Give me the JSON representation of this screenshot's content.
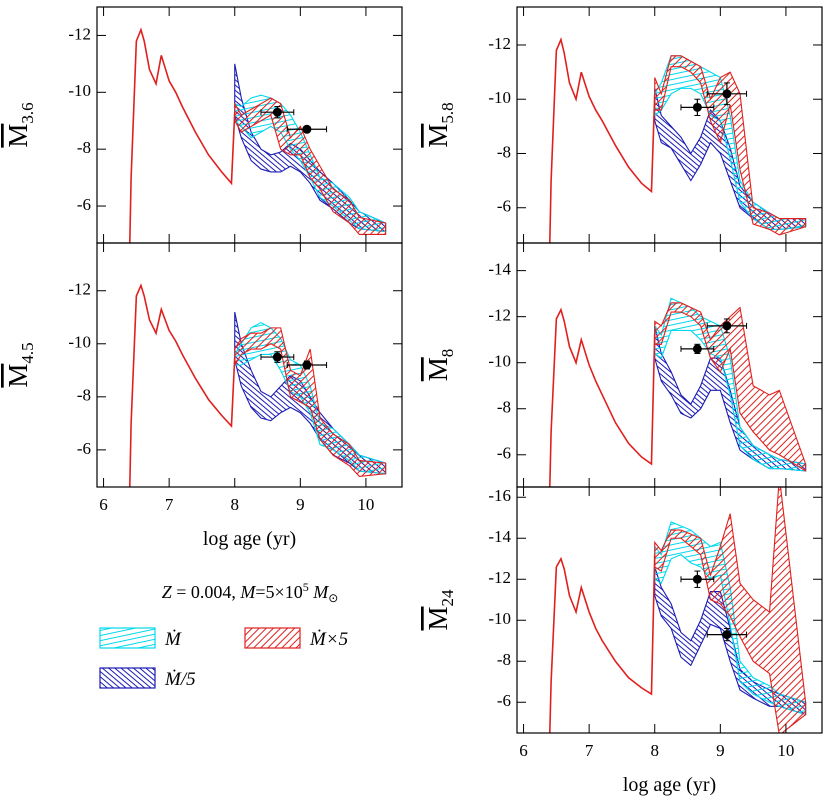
{
  "series": [
    {
      "name": "Ṁ",
      "color": "#00d8ee"
    },
    {
      "name": "Ṁ/5",
      "color": "#1c1cb4"
    },
    {
      "name": "Ṁ×5",
      "color": "#e0201e"
    }
  ],
  "annotation": [
    "Z",
    " = 0.004, ",
    "M",
    "=5×10",
    "5",
    " M",
    "⊙"
  ],
  "x_track": [
    6.4,
    6.42,
    6.5,
    6.57,
    6.62,
    6.7,
    6.8,
    6.88,
    7.0,
    7.1,
    7.2,
    7.4,
    7.6,
    7.8,
    7.95,
    8.0
  ],
  "x_bands": [
    8.0,
    8.1,
    8.25,
    8.4,
    8.55,
    8.7,
    8.85,
    9.0,
    9.15,
    9.3,
    9.5,
    9.75,
    9.9,
    10.3
  ],
  "chart_data": [
    {
      "type": "band",
      "ylabel": "M",
      "ylabel_sub": "3.6",
      "xlim": [
        5.9,
        10.55
      ],
      "xticks": [
        6,
        7,
        8,
        9,
        10
      ],
      "ylim": [
        -4.7,
        -13.0
      ],
      "yticks": [
        -12,
        -10,
        -8,
        -6
      ],
      "track": [
        -4.7,
        -7.0,
        -11.8,
        -12.2,
        -11.8,
        -10.8,
        -10.3,
        -11.3,
        -10.4,
        -10.0,
        -9.5,
        -8.6,
        -7.8,
        -7.2,
        -6.8,
        -9.3
      ],
      "bands": [
        {
          "lower": [
            -9.6,
            -9.5,
            -9.8,
            -9.9,
            -9.8,
            -9.6,
            -9.2,
            -8.6,
            -7.8,
            -7.0,
            -6.8,
            -6.3,
            -5.8,
            -5.4
          ],
          "upper": [
            -9.0,
            -8.8,
            -8.4,
            -8.6,
            -8.8,
            -8.6,
            -8.0,
            -7.6,
            -7.0,
            -6.3,
            -6.0,
            -5.5,
            -5.2,
            -5.1
          ]
        },
        {
          "lower": [
            -11.0,
            -9.8,
            -8.6,
            -8.0,
            -7.8,
            -7.9,
            -8.2,
            -8.0,
            -7.6,
            -7.2,
            -6.8,
            -6.2,
            -5.8,
            -5.4
          ],
          "upper": [
            -9.2,
            -8.4,
            -7.6,
            -7.3,
            -7.2,
            -7.2,
            -7.4,
            -7.2,
            -6.8,
            -6.2,
            -5.9,
            -5.4,
            -5.2,
            -5.1
          ]
        },
        {
          "lower": [
            -9.6,
            -9.2,
            -9.4,
            -9.6,
            -9.8,
            -9.6,
            -8.4,
            -8.8,
            -8.0,
            -7.4,
            -6.6,
            -6.2,
            -5.6,
            -5.4
          ],
          "upper": [
            -9.0,
            -8.6,
            -8.8,
            -9.0,
            -9.2,
            -8.0,
            -7.8,
            -7.8,
            -7.0,
            -6.6,
            -5.8,
            -5.4,
            -5.0,
            -5.0
          ]
        }
      ],
      "points": [
        {
          "x": 8.65,
          "y": -9.3,
          "xerr": 0.25,
          "yerr": 0.2
        },
        {
          "x": 9.1,
          "y": -8.7,
          "xerr": 0.3,
          "yerr": 0.1
        }
      ]
    },
    {
      "type": "band",
      "ylabel": "M",
      "ylabel_sub": "4.5",
      "xlabel": "log age (yr)",
      "xlim": [
        5.9,
        10.55
      ],
      "xticks": [
        6,
        7,
        8,
        9,
        10
      ],
      "ylim": [
        -4.6,
        -13.8
      ],
      "yticks": [
        -12,
        -10,
        -8,
        -6
      ],
      "track": [
        -4.6,
        -7.0,
        -11.8,
        -12.2,
        -11.8,
        -10.9,
        -10.4,
        -11.3,
        -10.5,
        -10.1,
        -9.6,
        -8.7,
        -7.9,
        -7.3,
        -6.9,
        -9.5
      ],
      "bands": [
        {
          "lower": [
            -9.6,
            -10.0,
            -10.6,
            -10.8,
            -10.6,
            -10.2,
            -9.4,
            -9.2,
            -8.4,
            -7.0,
            -6.8,
            -6.2,
            -5.8,
            -5.5
          ],
          "upper": [
            -9.2,
            -9.2,
            -9.4,
            -9.6,
            -9.6,
            -9.0,
            -8.2,
            -8.0,
            -7.4,
            -6.2,
            -6.0,
            -5.6,
            -5.2,
            -5.1
          ]
        },
        {
          "lower": [
            -11.2,
            -10.0,
            -9.0,
            -8.2,
            -8.0,
            -8.4,
            -8.8,
            -8.6,
            -8.0,
            -7.4,
            -6.8,
            -6.2,
            -5.8,
            -5.5
          ],
          "upper": [
            -9.4,
            -8.4,
            -7.6,
            -7.2,
            -7.1,
            -7.4,
            -7.6,
            -7.4,
            -7.0,
            -6.4,
            -5.8,
            -5.5,
            -5.2,
            -5.1
          ]
        },
        {
          "lower": [
            -9.8,
            -10.2,
            -10.4,
            -10.4,
            -10.6,
            -10.6,
            -9.0,
            -8.8,
            -9.8,
            -7.2,
            -6.6,
            -6.2,
            -5.6,
            -5.5
          ],
          "upper": [
            -9.2,
            -9.6,
            -9.8,
            -9.8,
            -10.0,
            -9.8,
            -8.0,
            -7.8,
            -7.6,
            -6.4,
            -5.8,
            -5.4,
            -5.0,
            -5.1
          ]
        }
      ],
      "points": [
        {
          "x": 8.65,
          "y": -9.5,
          "xerr": 0.25,
          "yerr": 0.2
        },
        {
          "x": 9.1,
          "y": -9.2,
          "xerr": 0.3,
          "yerr": 0.15
        }
      ]
    },
    {
      "type": "band",
      "ylabel": "M",
      "ylabel_sub": "5.8",
      "xlim": [
        5.9,
        10.55
      ],
      "xticks": [
        6,
        7,
        8,
        9,
        10
      ],
      "ylim": [
        -4.7,
        -13.4
      ],
      "yticks": [
        -12,
        -10,
        -8,
        -6
      ],
      "track": [
        -4.7,
        -7.0,
        -11.8,
        -12.2,
        -11.7,
        -10.6,
        -10.0,
        -11.0,
        -10.1,
        -9.6,
        -9.2,
        -8.3,
        -7.5,
        -6.9,
        -6.6,
        -10.2
      ],
      "bands": [
        {
          "lower": [
            -10.2,
            -10.6,
            -11.6,
            -11.6,
            -11.4,
            -11.2,
            -11.0,
            -10.8,
            -9.4,
            -7.0,
            -6.2,
            -5.8,
            -5.6,
            -5.6
          ],
          "upper": [
            -9.4,
            -9.6,
            -10.2,
            -10.4,
            -10.4,
            -10.2,
            -9.4,
            -9.2,
            -7.8,
            -6.2,
            -5.6,
            -5.2,
            -5.2,
            -5.3
          ]
        },
        {
          "lower": [
            -10.4,
            -9.4,
            -9.0,
            -8.6,
            -8.0,
            -8.6,
            -9.6,
            -9.2,
            -8.2,
            -6.8,
            -6.2,
            -5.8,
            -5.6,
            -5.6
          ],
          "upper": [
            -9.2,
            -8.4,
            -8.2,
            -7.6,
            -7.0,
            -7.6,
            -8.4,
            -8.0,
            -7.0,
            -6.0,
            -5.6,
            -5.2,
            -5.2,
            -5.3
          ]
        },
        {
          "lower": [
            -10.8,
            -10.2,
            -11.6,
            -11.6,
            -11.4,
            -11.2,
            -10.0,
            -10.8,
            -11.0,
            -10.2,
            -6.0,
            -5.8,
            -5.6,
            -5.6
          ],
          "upper": [
            -9.6,
            -9.6,
            -11.2,
            -11.2,
            -11.0,
            -10.6,
            -9.2,
            -8.4,
            -9.8,
            -7.4,
            -5.4,
            -5.2,
            -5.0,
            -5.3
          ]
        }
      ],
      "points": [
        {
          "x": 8.65,
          "y": -9.7,
          "xerr": 0.25,
          "yerr": 0.3
        },
        {
          "x": 9.1,
          "y": -10.2,
          "xerr": 0.3,
          "yerr": 0.4
        }
      ]
    },
    {
      "type": "band",
      "ylabel": "M",
      "ylabel_sub": "8",
      "xlim": [
        5.9,
        10.55
      ],
      "xticks": [
        6,
        7,
        8,
        9,
        10
      ],
      "ylim": [
        -4.6,
        -15.2
      ],
      "yticks": [
        -14,
        -12,
        -10,
        -8,
        -6
      ],
      "track": [
        -4.6,
        -7.0,
        -11.9,
        -12.3,
        -11.8,
        -10.7,
        -10.0,
        -11.0,
        -9.9,
        -9.2,
        -8.6,
        -7.4,
        -6.5,
        -5.9,
        -5.6,
        -11.3
      ],
      "bands": [
        {
          "lower": [
            -11.6,
            -11.2,
            -12.8,
            -12.6,
            -12.4,
            -12.0,
            -11.8,
            -11.6,
            -10.2,
            -7.2,
            -6.4,
            -6.0,
            -5.8,
            -5.6
          ],
          "upper": [
            -10.4,
            -10.2,
            -11.4,
            -11.4,
            -11.4,
            -11.0,
            -10.4,
            -10.2,
            -8.6,
            -6.4,
            -5.8,
            -5.4,
            -5.4,
            -5.3
          ]
        },
        {
          "lower": [
            -11.6,
            -10.4,
            -9.6,
            -8.6,
            -8.2,
            -9.0,
            -10.2,
            -10.2,
            -8.8,
            -7.2,
            -6.4,
            -6.0,
            -5.8,
            -5.6
          ],
          "upper": [
            -10.2,
            -9.2,
            -8.6,
            -7.8,
            -7.6,
            -8.0,
            -8.8,
            -8.8,
            -7.4,
            -6.2,
            -5.8,
            -5.4,
            -5.4,
            -5.3
          ]
        },
        {
          "lower": [
            -11.8,
            -11.6,
            -12.6,
            -12.6,
            -12.4,
            -12.2,
            -11.0,
            -11.6,
            -12.0,
            -12.4,
            -9.0,
            -8.6,
            -8.8,
            -5.6
          ],
          "upper": [
            -10.8,
            -10.8,
            -12.2,
            -12.2,
            -12.0,
            -11.6,
            -10.2,
            -9.6,
            -10.6,
            -7.8,
            -7.0,
            -6.2,
            -6.0,
            -5.3
          ]
        }
      ],
      "points": [
        {
          "x": 8.65,
          "y": -10.6,
          "xerr": 0.25,
          "yerr": 0.2
        },
        {
          "x": 9.1,
          "y": -11.6,
          "xerr": 0.3,
          "yerr": 0.3
        }
      ]
    },
    {
      "type": "band",
      "ylabel": "M",
      "ylabel_sub": "24",
      "xlabel": "log age (yr)",
      "xlim": [
        5.9,
        10.55
      ],
      "xticks": [
        6,
        7,
        8,
        9,
        10
      ],
      "ylim": [
        -4.5,
        -16.5
      ],
      "yticks": [
        -16,
        -14,
        -12,
        -10,
        -8,
        -6
      ],
      "track": [
        -4.5,
        -7.0,
        -12.6,
        -13.0,
        -12.5,
        -11.2,
        -10.4,
        -11.6,
        -10.4,
        -9.6,
        -9.0,
        -8.0,
        -7.2,
        -6.7,
        -6.4,
        -13.2
      ],
      "bands": [
        {
          "lower": [
            -13.6,
            -13.2,
            -14.8,
            -14.6,
            -14.4,
            -14.0,
            -13.6,
            -13.8,
            -11.6,
            -8.0,
            -7.2,
            -6.8,
            -6.4,
            -6.0
          ],
          "upper": [
            -12.0,
            -11.8,
            -13.0,
            -13.2,
            -12.8,
            -12.6,
            -12.0,
            -12.2,
            -9.8,
            -7.0,
            -6.4,
            -6.0,
            -5.8,
            -5.4
          ]
        },
        {
          "lower": [
            -12.6,
            -11.6,
            -10.8,
            -9.4,
            -9.0,
            -10.0,
            -11.4,
            -11.4,
            -9.6,
            -7.6,
            -7.0,
            -6.6,
            -6.4,
            -6.0
          ],
          "upper": [
            -11.2,
            -10.2,
            -9.6,
            -8.2,
            -7.8,
            -8.8,
            -9.8,
            -9.6,
            -8.0,
            -6.6,
            -6.2,
            -5.8,
            -5.8,
            -5.4
          ]
        },
        {
          "lower": [
            -13.8,
            -13.4,
            -14.4,
            -14.4,
            -14.2,
            -14.0,
            -12.2,
            -13.6,
            -15.2,
            -11.8,
            -11.0,
            -10.4,
            -17.0,
            -6.0
          ],
          "upper": [
            -12.6,
            -12.4,
            -14.0,
            -14.0,
            -13.6,
            -13.2,
            -11.0,
            -10.8,
            -10.2,
            -9.2,
            -8.0,
            -7.4,
            -4.4,
            -5.4
          ]
        }
      ],
      "points": [
        {
          "x": 8.65,
          "y": -12.0,
          "xerr": 0.25,
          "yerr": 0.4
        },
        {
          "x": 9.1,
          "y": -9.3,
          "xerr": 0.3,
          "yerr": 0.3
        }
      ]
    }
  ]
}
